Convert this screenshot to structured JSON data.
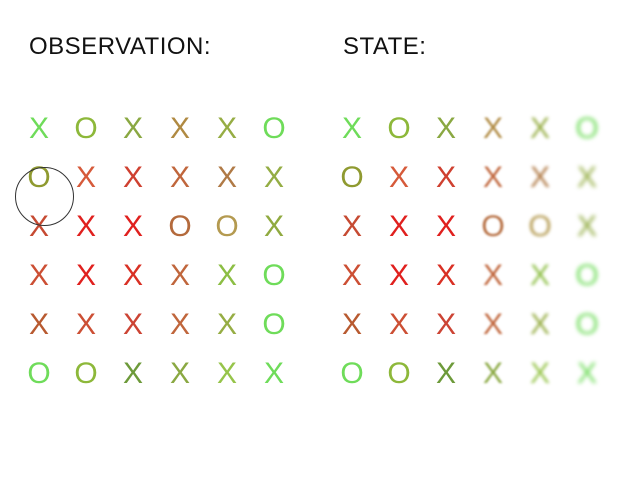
{
  "observation": {
    "title": "OBSERVATION:",
    "rows": [
      [
        "X",
        "O",
        "X",
        "X",
        "X",
        "O"
      ],
      [
        "O",
        "X",
        "X",
        "X",
        "X",
        "X"
      ],
      [
        "X",
        "X",
        "X",
        "O",
        "O",
        "X"
      ],
      [
        "X",
        "X",
        "X",
        "X",
        "X",
        "O"
      ],
      [
        "X",
        "X",
        "X",
        "X",
        "X",
        "O"
      ],
      [
        "O",
        "O",
        "X",
        "X",
        "X",
        "X"
      ]
    ],
    "colors": [
      [
        "#6fdc5a",
        "#8db83a",
        "#8aa842",
        "#b08a42",
        "#96ad44",
        "#6fdc5a"
      ],
      [
        "#8f9a30",
        "#d65a3a",
        "#cf4030",
        "#c0663c",
        "#b07a46",
        "#94ad44"
      ],
      [
        "#c64a32",
        "#e0201e",
        "#e0201e",
        "#b46a3c",
        "#b49a50",
        "#90aa40"
      ],
      [
        "#cc4f34",
        "#e0201e",
        "#d93024",
        "#c0663c",
        "#8cbe44",
        "#6fdc5a"
      ],
      [
        "#b85a30",
        "#cc4f34",
        "#cc4434",
        "#c0663c",
        "#96ad44",
        "#6fdc5a"
      ],
      [
        "#6fdc5a",
        "#8db83a",
        "#6d9a3a",
        "#8aa842",
        "#96c44a",
        "#6fdc5a"
      ]
    ]
  },
  "state": {
    "title": "STATE:",
    "rows": [
      [
        "X",
        "O",
        "X",
        "X",
        "X",
        "O"
      ],
      [
        "O",
        "X",
        "X",
        "X",
        "X",
        "X"
      ],
      [
        "X",
        "X",
        "X",
        "O",
        "O",
        "X"
      ],
      [
        "X",
        "X",
        "X",
        "X",
        "X",
        "O"
      ],
      [
        "X",
        "X",
        "X",
        "X",
        "X",
        "O"
      ],
      [
        "O",
        "O",
        "X",
        "X",
        "X",
        "X"
      ]
    ],
    "colors": [
      [
        "#6fdc5a",
        "#8db83a",
        "#8aa842",
        "#b08a42",
        "#96ad44",
        "#6fdc5a"
      ],
      [
        "#8f9a30",
        "#d65a3a",
        "#cf4030",
        "#c0663c",
        "#b07a46",
        "#94ad44"
      ],
      [
        "#c64a32",
        "#e0201e",
        "#e0201e",
        "#b46a3c",
        "#b49a50",
        "#90aa40"
      ],
      [
        "#cc4f34",
        "#e0201e",
        "#d93024",
        "#c0663c",
        "#8cbe44",
        "#6fdc5a"
      ],
      [
        "#b85a30",
        "#cc4f34",
        "#cc4434",
        "#c0663c",
        "#96ad44",
        "#6fdc5a"
      ],
      [
        "#6fdc5a",
        "#8db83a",
        "#6d9a3a",
        "#8aa842",
        "#96c44a",
        "#6fdc5a"
      ]
    ]
  },
  "cursor": {
    "row": 1,
    "col": 0
  }
}
